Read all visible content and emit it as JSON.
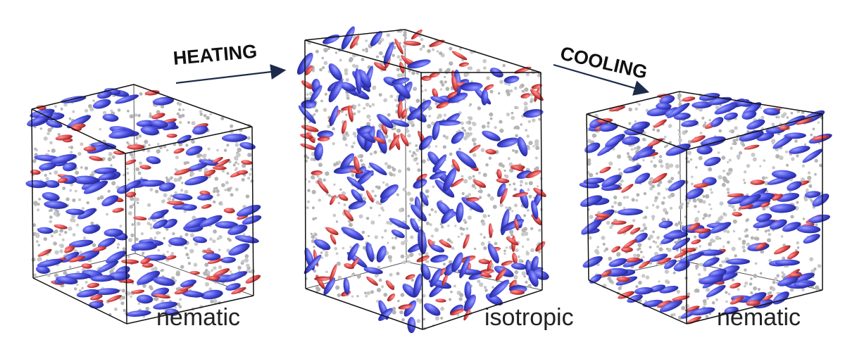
{
  "labels": {
    "left_phase": "nematic",
    "middle_phase": "isotropic",
    "right_phase": "nematic",
    "heating": "HEATING",
    "cooling": "COOLING"
  },
  "colors": {
    "blue_mesogen": "#4a4fe0",
    "red_mesogen": "#e04a4a",
    "grey_particles": "#b8b8b8",
    "arrow": "#1c2b4a",
    "box_edge": "#111111"
  }
}
